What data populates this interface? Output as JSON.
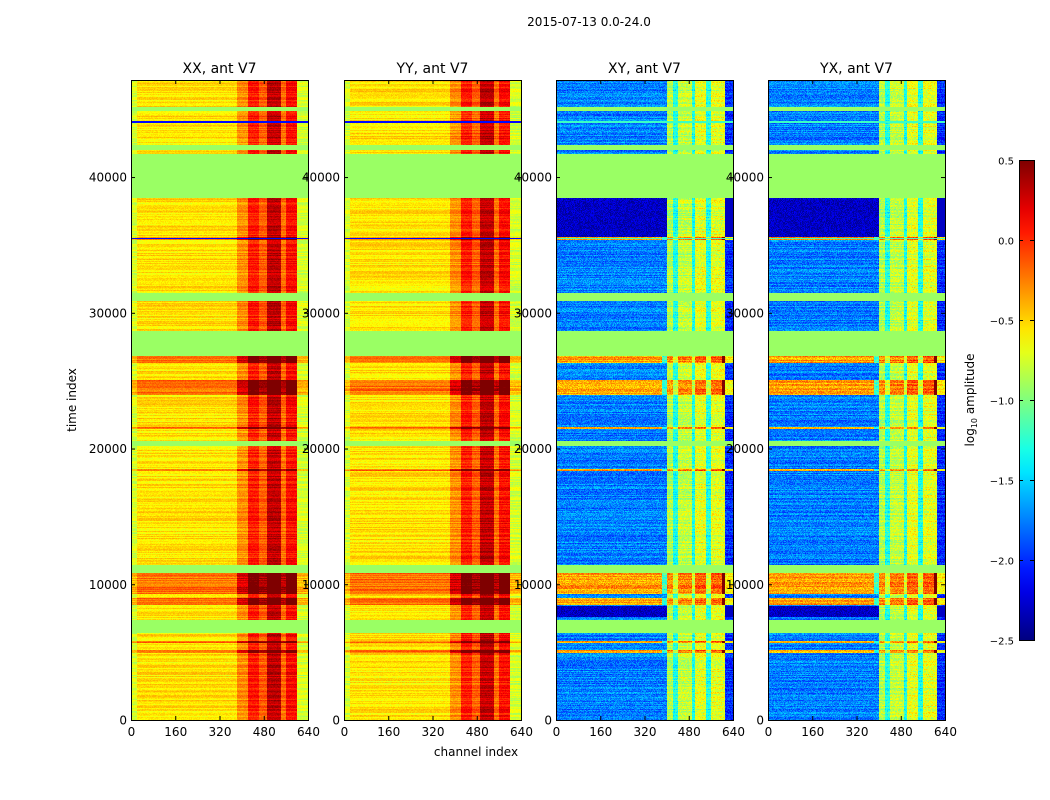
{
  "chart_data": {
    "type": "heatmap",
    "title": "2015-07-13 0.0-24.0",
    "xlabel": "channel index",
    "ylabel": "time index",
    "xlim": [
      0,
      640
    ],
    "ylim": [
      0,
      47150
    ],
    "xticks": [
      0,
      160,
      320,
      480,
      640
    ],
    "yticks": [
      0,
      10000,
      20000,
      30000,
      40000
    ],
    "panels": [
      {
        "title": "XX, ant V7",
        "kind": "auto"
      },
      {
        "title": "YY, ant V7",
        "kind": "auto"
      },
      {
        "title": "XY, ant V7",
        "kind": "cross"
      },
      {
        "title": "YX, ant V7",
        "kind": "cross"
      }
    ],
    "colorbar": {
      "label": "log10 amplitude",
      "label_main": "log",
      "label_sub": "10",
      "label_rest": " amplitude",
      "colormap": "jet",
      "vmin": -2.5,
      "vmax": 0.5,
      "ticks": [
        0.5,
        0.0,
        -0.5,
        -1.0,
        -1.5,
        -2.0,
        -2.5
      ],
      "tick_labels": [
        "0.5",
        "0.0",
        "−0.5",
        "−1.0",
        "−1.5",
        "−2.0",
        "−2.5"
      ]
    },
    "column_profiles": {
      "auto": [
        [
          0,
          20,
          -0.75
        ],
        [
          20,
          380,
          -0.55
        ],
        [
          380,
          420,
          -0.3
        ],
        [
          420,
          460,
          0.05
        ],
        [
          460,
          490,
          -0.15
        ],
        [
          490,
          540,
          0.3
        ],
        [
          540,
          560,
          -0.2
        ],
        [
          560,
          600,
          0.1
        ],
        [
          600,
          640,
          -0.75
        ]
      ],
      "cross": [
        [
          0,
          400,
          -1.75
        ],
        [
          400,
          420,
          -0.85
        ],
        [
          420,
          440,
          -1.3
        ],
        [
          440,
          490,
          -0.8
        ],
        [
          490,
          500,
          -1.3
        ],
        [
          500,
          540,
          -0.7
        ],
        [
          540,
          560,
          -1.3
        ],
        [
          560,
          610,
          -0.7
        ],
        [
          610,
          640,
          -2.0
        ]
      ]
    },
    "flagged_value": -0.92,
    "flagged_ranges": [
      [
        6480,
        7370
      ],
      [
        10900,
        11420
      ],
      [
        20250,
        20600
      ],
      [
        26890,
        28730
      ],
      [
        30940,
        31530
      ],
      [
        38520,
        41760
      ],
      [
        42000,
        42400
      ],
      [
        44900,
        45200
      ]
    ],
    "hot_ranges": [
      [
        5000,
        5200
      ],
      [
        5700,
        5850
      ],
      [
        8500,
        9000
      ],
      [
        9300,
        10900
      ],
      [
        24000,
        25100
      ],
      [
        26350,
        26890
      ],
      [
        21500,
        21650
      ],
      [
        18400,
        18550
      ],
      [
        35400,
        35600
      ],
      [
        41000,
        41200
      ]
    ],
    "cold_cross_ranges": [
      [
        35600,
        38520
      ],
      [
        7600,
        8400
      ]
    ],
    "blue_line_ranges": [
      [
        44000,
        44150
      ],
      [
        35500,
        35560
      ]
    ]
  }
}
